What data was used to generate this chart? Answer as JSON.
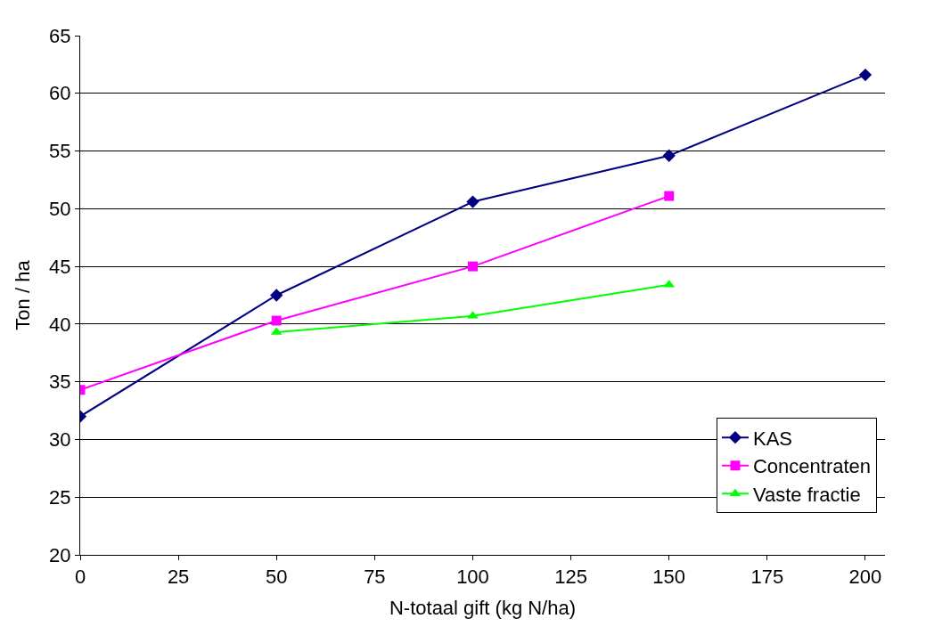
{
  "chart_data": {
    "type": "line",
    "xlabel": "N-totaal gift (kg N/ha)",
    "ylabel": "Ton / ha",
    "xlim": [
      0,
      205
    ],
    "xticks": [
      0,
      25,
      50,
      75,
      100,
      125,
      150,
      175,
      200
    ],
    "ylim": [
      20,
      65
    ],
    "yticks": [
      20,
      25,
      30,
      35,
      40,
      45,
      50,
      55,
      60,
      65
    ],
    "grid": "y",
    "legend": "bottom right",
    "line_style": "solid",
    "series": [
      {
        "name": "KAS",
        "color": "#000080",
        "marker": "diamond",
        "x": [
          0,
          50,
          100,
          150,
          200
        ],
        "values": [
          32.0,
          42.5,
          50.6,
          54.6,
          61.6
        ]
      },
      {
        "name": "Concentraten",
        "color": "#ff00ff",
        "marker": "square",
        "x": [
          0,
          50,
          100,
          150
        ],
        "values": [
          34.3,
          40.3,
          45.0,
          51.1
        ]
      },
      {
        "name": "Vaste fractie",
        "color": "#00ff00",
        "marker": "triangle",
        "x": [
          50,
          100,
          150
        ],
        "values": [
          39.3,
          40.7,
          43.4
        ]
      }
    ]
  }
}
